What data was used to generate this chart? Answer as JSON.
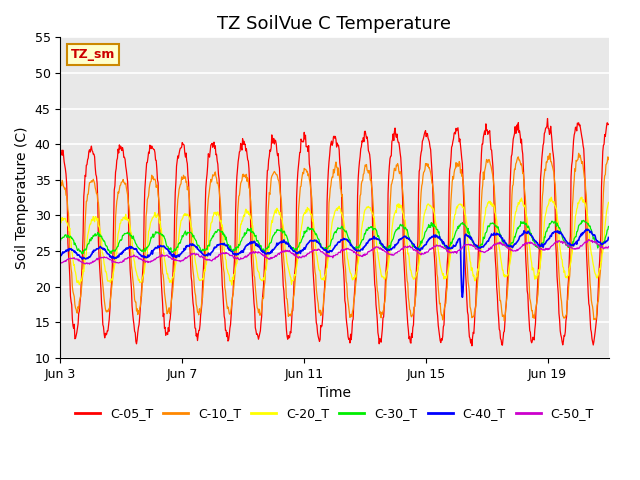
{
  "title": "TZ SoilVue C Temperature",
  "xlabel": "Time",
  "ylabel": "Soil Temperature (C)",
  "ylim": [
    10,
    55
  ],
  "yticks": [
    10,
    15,
    20,
    25,
    30,
    35,
    40,
    45,
    50,
    55
  ],
  "x_tick_labels": [
    "Jun 3",
    "Jun 7",
    "Jun 11",
    "Jun 15",
    "Jun 19"
  ],
  "x_tick_positions": [
    0,
    4,
    8,
    12,
    16
  ],
  "n_days": 18,
  "legend_labels": [
    "C-05_T",
    "C-10_T",
    "C-20_T",
    "C-30_T",
    "C-40_T",
    "C-50_T"
  ],
  "legend_colors": [
    "#ff0000",
    "#ff8800",
    "#ffff00",
    "#00ee00",
    "#0000ff",
    "#cc00cc"
  ],
  "annotation_text": "TZ_sm",
  "annotation_color": "#cc0000",
  "annotation_bg": "#ffffcc",
  "annotation_border": "#cc8800",
  "plot_bg": "#e8e8e8",
  "fig_bg": "#ffffff",
  "grid_color": "#ffffff",
  "title_fontsize": 13,
  "axis_label_fontsize": 10,
  "tick_fontsize": 9
}
